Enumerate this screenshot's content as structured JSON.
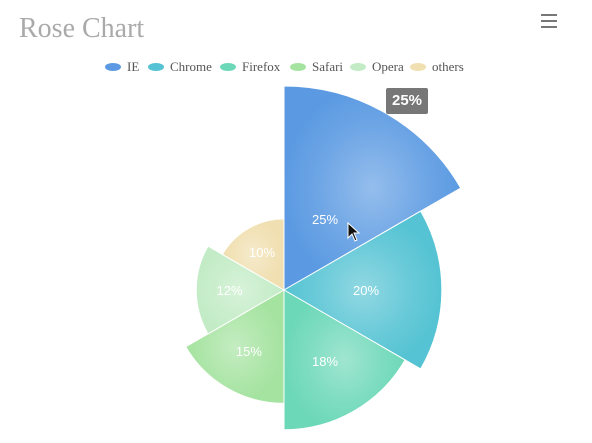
{
  "header": {
    "title": "Rose Chart"
  },
  "tooltip": {
    "text": "25%"
  },
  "colors": {
    "title": "#aaaaaa",
    "tooltip_bg": "#777777"
  },
  "icons": {
    "menu": "hamburger-menu-icon",
    "cursor": "mouse-pointer-icon"
  },
  "chart_data": {
    "type": "pie",
    "variant": "rose",
    "title": "Rose Chart",
    "legend_position": "top-center",
    "start_angle_deg": 90,
    "direction": "clockwise",
    "series": [
      {
        "name": "IE",
        "value": 25,
        "label": "25%",
        "color": "#5b9ae2",
        "highlighted": true
      },
      {
        "name": "Chrome",
        "value": 20,
        "label": "20%",
        "color": "#55c3d3"
      },
      {
        "name": "Firefox",
        "value": 18,
        "label": "18%",
        "color": "#6dd8b8"
      },
      {
        "name": "Safari",
        "value": 15,
        "label": "15%",
        "color": "#a5e3a0"
      },
      {
        "name": "Opera",
        "value": 12,
        "label": "12%",
        "color": "#c3ecc6"
      },
      {
        "name": "others",
        "value": 10,
        "label": "10%",
        "color": "#f0dfb0"
      }
    ]
  }
}
